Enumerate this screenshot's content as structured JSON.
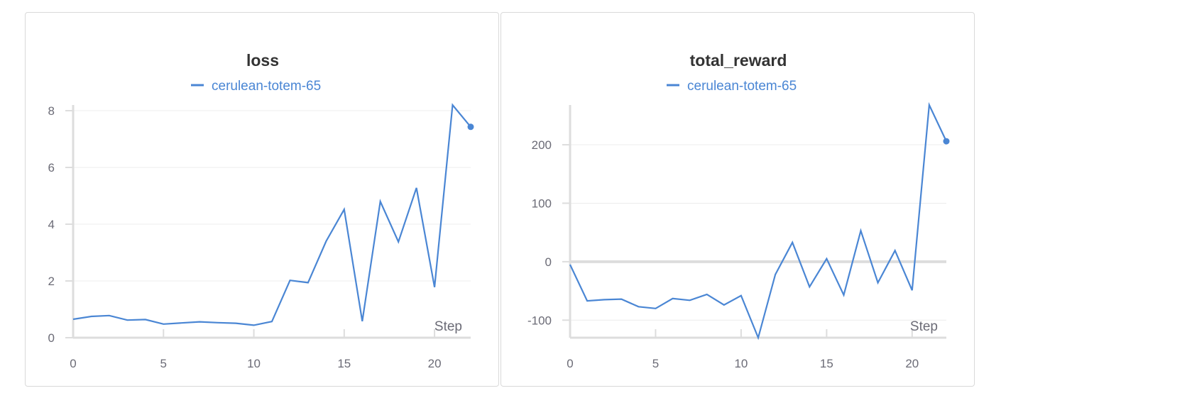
{
  "theme": {
    "series_color": "#4a86d4",
    "grid_color": "#ececec",
    "axis_color": "#dddddd",
    "text_color": "#6b6b76"
  },
  "chart_data": [
    {
      "type": "line",
      "title": "loss",
      "xlabel": "Step",
      "ylabel": "",
      "xlim": [
        0,
        22
      ],
      "ylim": [
        0,
        8.2
      ],
      "xticks": [
        0,
        5,
        10,
        15,
        20
      ],
      "yticks": [
        0,
        2,
        4,
        6,
        8
      ],
      "ytick_labels": [
        "0",
        "2",
        "4",
        "6",
        "8"
      ],
      "grid": true,
      "legend_position": "top",
      "series": [
        {
          "name": "cerulean-totem-65",
          "color": "#4a86d4",
          "x": [
            0,
            1,
            2,
            3,
            4,
            5,
            6,
            7,
            8,
            9,
            10,
            11,
            12,
            13,
            14,
            15,
            16,
            17,
            18,
            19,
            20,
            21,
            22
          ],
          "y": [
            0.65,
            0.75,
            0.78,
            0.62,
            0.64,
            0.48,
            0.52,
            0.56,
            0.53,
            0.51,
            0.44,
            0.57,
            2.02,
            1.94,
            3.4,
            4.52,
            0.58,
            4.8,
            3.38,
            5.28,
            1.78,
            8.2,
            7.43
          ]
        }
      ]
    },
    {
      "type": "line",
      "title": "total_reward",
      "xlabel": "Step",
      "ylabel": "",
      "xlim": [
        0,
        22
      ],
      "ylim": [
        -130,
        268
      ],
      "xticks": [
        0,
        5,
        10,
        15,
        20
      ],
      "yticks": [
        -100,
        0,
        100,
        200
      ],
      "ytick_labels": [
        "-100",
        "0",
        "100",
        "200"
      ],
      "grid": true,
      "legend_position": "top",
      "series": [
        {
          "name": "cerulean-totem-65",
          "color": "#4a86d4",
          "x": [
            0,
            1,
            2,
            3,
            4,
            5,
            6,
            7,
            8,
            9,
            10,
            11,
            12,
            13,
            14,
            15,
            16,
            17,
            18,
            19,
            20,
            21,
            22
          ],
          "y": [
            -5,
            -67,
            -65,
            -64,
            -77,
            -80,
            -63,
            -66,
            -56,
            -74,
            -58,
            -130,
            -22,
            33,
            -43,
            5,
            -57,
            53,
            -36,
            19,
            -49,
            268,
            206
          ]
        }
      ]
    }
  ]
}
